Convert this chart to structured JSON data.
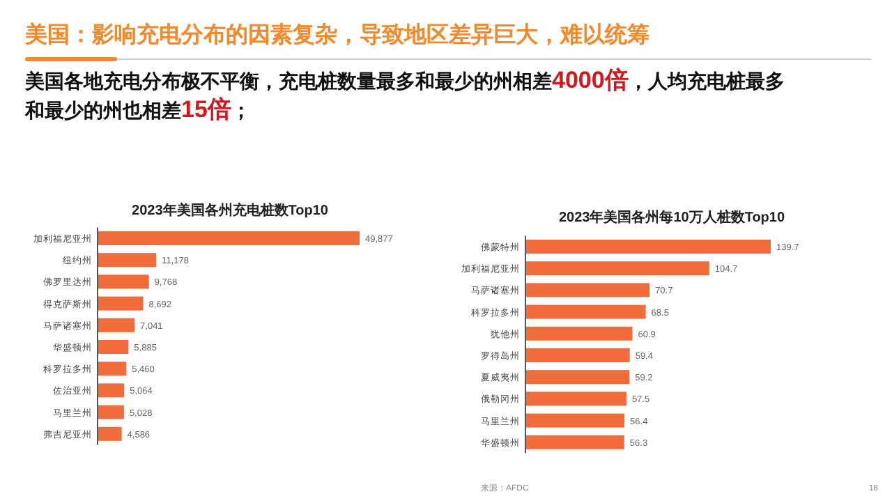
{
  "chart_data": [
    {
      "type": "other",
      "title": "美国：影响充电分布的因素复杂，导致地区差异巨大，难以统筹",
      "subtitle": "美国各地充电分布极不平衡，充电桩数量最多和最少的州相差4000倍，人均充电桩最多和最少的州也相差15倍；",
      "annotations": [
        "18"
      ]
    },
    {
      "type": "bar",
      "orientation": "horizontal",
      "title": "2023年美国各州充电桩数Top10",
      "categories": [
        "加利福尼亚州",
        "纽约州",
        "佛罗里达州",
        "得克萨斯州",
        "马萨诸塞州",
        "华盛顿州",
        "科罗拉多州",
        "佐治亚州",
        "马里兰州",
        "弗吉尼亚州"
      ],
      "values": [
        49877,
        11178,
        9768,
        8692,
        7041,
        5885,
        5460,
        5064,
        5028,
        4586
      ],
      "value_labels": [
        "49,877",
        "11,178",
        "9,768",
        "8,692",
        "7,041",
        "5,885",
        "5,460",
        "5,064",
        "5,028",
        "4,586"
      ],
      "color": "#f26b3a"
    },
    {
      "type": "bar",
      "orientation": "horizontal",
      "title": "2023年美国各州每10万人桩数Top10",
      "categories": [
        "佛蒙特州",
        "加利福尼亚州",
        "马萨诸塞州",
        "科罗拉多州",
        "犹他州",
        "罗得岛州",
        "夏威夷州",
        "俄勒冈州",
        "马里兰州",
        "华盛顿州"
      ],
      "values": [
        139.7,
        104.7,
        70.7,
        68.5,
        60.9,
        59.4,
        59.2,
        57.5,
        56.4,
        56.3
      ],
      "data_labels": true,
      "color": "#f26b3a",
      "annotations": [
        "来源：AFDC"
      ]
    }
  ]
}
